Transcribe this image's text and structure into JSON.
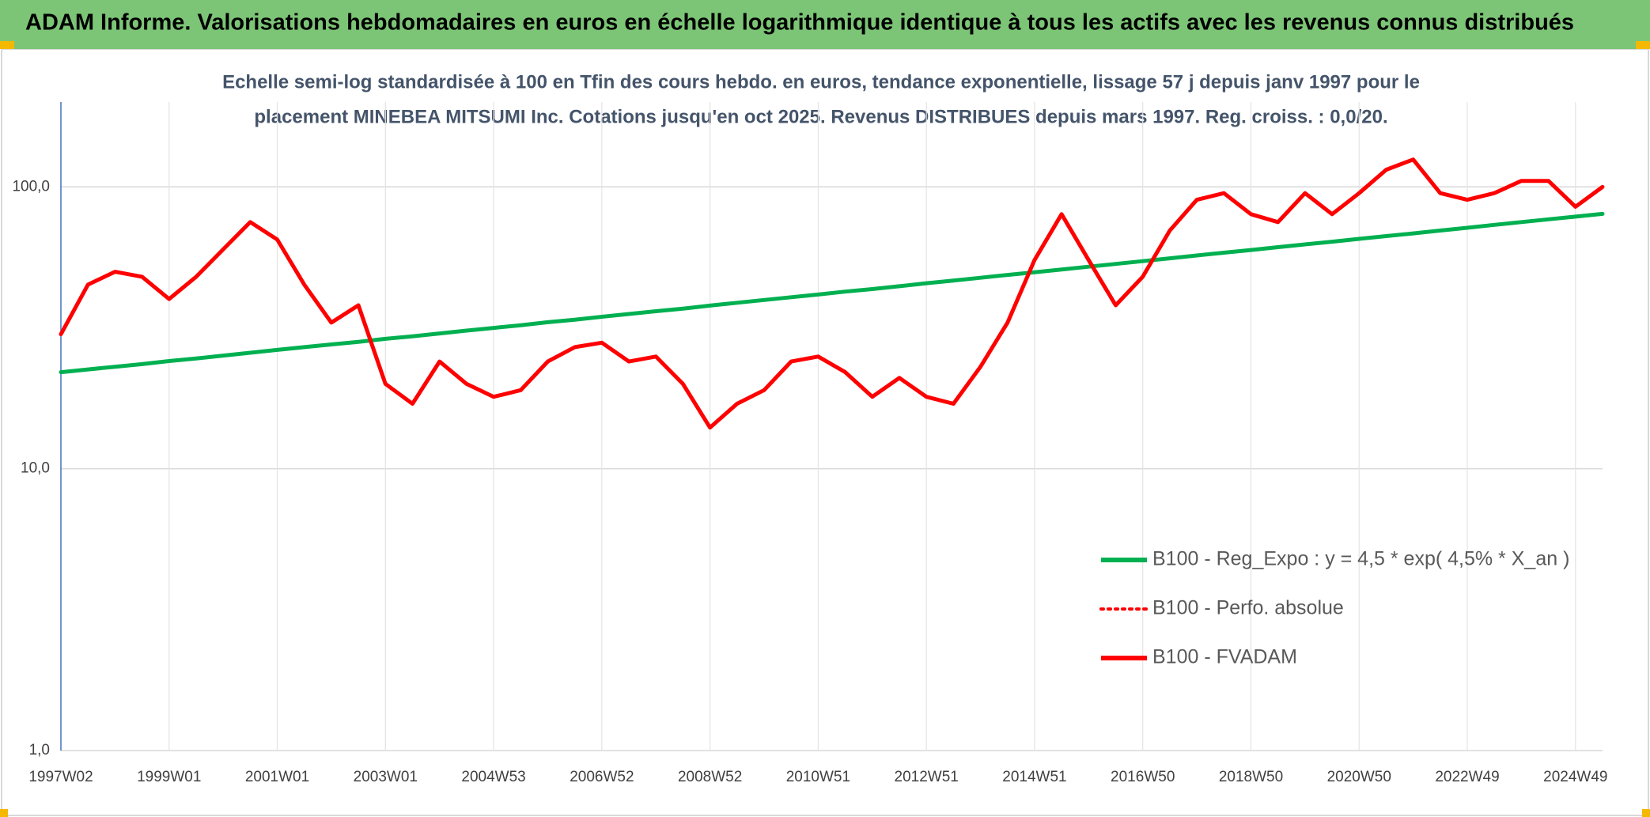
{
  "chart_data": {
    "type": "line",
    "title": "ADAM Informe. Valorisations hebdomadaires en euros en échelle logarithmique identique à tous les actifs avec les revenus connus distribués",
    "subtitle": [
      "Echelle semi-log standardisée à 100 en Tfin des cours hebdo. en euros, tendance exponentielle, lissage 57 j depuis janv 1997 pour le",
      "placement MINEBEA MITSUMI Inc. Cotations jusqu'en oct 2025. Revenus DISTRIBUES depuis mars 1997. Reg. croiss. : 0,0/20."
    ],
    "categories": [
      "1997W02",
      null,
      null,
      null,
      "1999W01",
      null,
      null,
      null,
      "2001W01",
      null,
      null,
      null,
      "2003W01",
      null,
      null,
      null,
      "2004W53",
      null,
      null,
      null,
      "2006W52",
      null,
      null,
      null,
      "2008W52",
      null,
      null,
      null,
      "2010W51",
      null,
      null,
      null,
      "2012W51",
      null,
      null,
      null,
      "2014W51",
      null,
      null,
      null,
      "2016W50",
      null,
      null,
      null,
      "2018W50",
      null,
      null,
      null,
      "2020W50",
      null,
      null,
      null,
      "2022W49",
      null,
      null,
      null,
      "2024W49",
      null
    ],
    "series": [
      {
        "name": "B100 - Reg_Expo : y = 4,5 * exp( 4,5% *  X_an )",
        "color": "#00b050",
        "line_style": "solid",
        "values": [
          22.0,
          22.5,
          23.0,
          23.5,
          24.1,
          24.6,
          25.2,
          25.8,
          26.4,
          27.0,
          27.6,
          28.2,
          28.9,
          29.5,
          30.2,
          30.9,
          31.6,
          32.3,
          33.1,
          33.8,
          34.6,
          35.4,
          36.2,
          37.0,
          37.9,
          38.8,
          39.7,
          40.6,
          41.5,
          42.5,
          43.4,
          44.4,
          45.5,
          46.5,
          47.6,
          48.7,
          49.8,
          50.9,
          52.1,
          53.3,
          54.5,
          55.8,
          57.1,
          58.4,
          59.7,
          61.1,
          62.5,
          63.9,
          65.4,
          66.9,
          68.4,
          70.0,
          71.6,
          73.3,
          75.0,
          76.7,
          78.4,
          80.2
        ]
      },
      {
        "name": "B100 - Perfo. absolue",
        "color": "#ff0000",
        "line_style": "dotted",
        "values": [
          30,
          45,
          50,
          48,
          40,
          48,
          60,
          75,
          65,
          45,
          33,
          38,
          20,
          17,
          24,
          20,
          18,
          19,
          24,
          27,
          28,
          24,
          25,
          20,
          14,
          17,
          19,
          24,
          25,
          22,
          18,
          21,
          18,
          17,
          23,
          33,
          55,
          80,
          55,
          38,
          48,
          70,
          90,
          95,
          80,
          75,
          95,
          80,
          95,
          115,
          125,
          95,
          90,
          95,
          105,
          105,
          85,
          100
        ]
      },
      {
        "name": "B100 - FVADAM",
        "color": "#ff0000",
        "line_style": "solid",
        "values": [
          30,
          45,
          50,
          48,
          40,
          48,
          60,
          75,
          65,
          45,
          33,
          38,
          20,
          17,
          24,
          20,
          18,
          19,
          24,
          27,
          28,
          24,
          25,
          20,
          14,
          17,
          19,
          24,
          25,
          22,
          18,
          21,
          18,
          17,
          23,
          33,
          55,
          80,
          55,
          38,
          48,
          70,
          90,
          95,
          80,
          75,
          95,
          80,
          95,
          115,
          125,
          95,
          90,
          95,
          105,
          105,
          85,
          100
        ]
      }
    ],
    "ylim": [
      1,
      200
    ],
    "yticks": [
      {
        "value": 1,
        "label": "1,0"
      },
      {
        "value": 10,
        "label": "10,0"
      },
      {
        "value": 100,
        "label": "100,0"
      }
    ],
    "log_scale": true,
    "grid": true
  }
}
